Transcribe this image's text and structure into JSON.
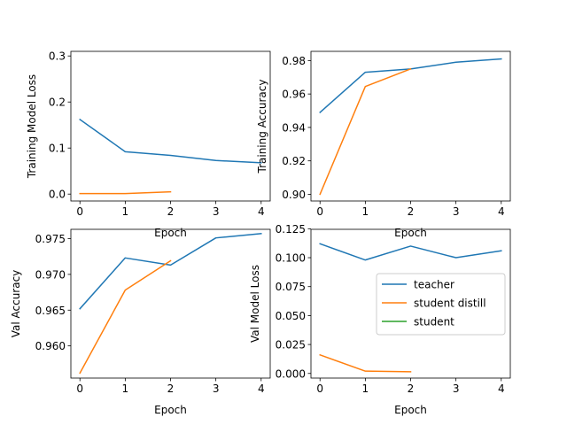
{
  "chart_data": [
    {
      "type": "line",
      "xlabel": "Epoch",
      "ylabel": "Training Model Loss",
      "xlim": [
        -0.2,
        4.2
      ],
      "ylim": [
        -0.015,
        0.31
      ],
      "xticks": [
        0,
        1,
        2,
        3,
        4
      ],
      "xtick_labels": [
        "0",
        "1",
        "2",
        "3",
        "4"
      ],
      "yticks": [
        0.0,
        0.1,
        0.2,
        0.3
      ],
      "ytick_labels": [
        "0.0",
        "0.1",
        "0.2",
        "0.3"
      ],
      "series": [
        {
          "name": "teacher",
          "x": [
            0,
            1,
            2,
            3,
            4
          ],
          "values": [
            0.162,
            0.092,
            0.084,
            0.073,
            0.068
          ]
        },
        {
          "name": "student distill",
          "x": [
            0,
            1,
            2
          ],
          "values": [
            0.001,
            0.001,
            0.005
          ]
        }
      ]
    },
    {
      "type": "line",
      "xlabel": "Epoch",
      "ylabel": "Training Accuracy",
      "xlim": [
        -0.2,
        4.2
      ],
      "ylim": [
        0.896,
        0.9855
      ],
      "xticks": [
        0,
        1,
        2,
        3,
        4
      ],
      "xtick_labels": [
        "0",
        "1",
        "2",
        "3",
        "4"
      ],
      "yticks": [
        0.9,
        0.92,
        0.94,
        0.96,
        0.98
      ],
      "ytick_labels": [
        "0.90",
        "0.92",
        "0.94",
        "0.96",
        "0.98"
      ],
      "series": [
        {
          "name": "teacher",
          "x": [
            0,
            1,
            2,
            3,
            4
          ],
          "values": [
            0.949,
            0.973,
            0.975,
            0.979,
            0.981
          ]
        },
        {
          "name": "student distill",
          "x": [
            0,
            1,
            2
          ],
          "values": [
            0.9,
            0.9645,
            0.975
          ]
        }
      ]
    },
    {
      "type": "line",
      "xlabel": "Epoch",
      "ylabel": "Val Accuracy",
      "xlim": [
        -0.2,
        4.2
      ],
      "ylim": [
        0.9555,
        0.9763
      ],
      "xticks": [
        0,
        1,
        2,
        3,
        4
      ],
      "xtick_labels": [
        "0",
        "1",
        "2",
        "3",
        "4"
      ],
      "yticks": [
        0.96,
        0.965,
        0.97,
        0.975
      ],
      "ytick_labels": [
        "0.960",
        "0.965",
        "0.970",
        "0.975"
      ],
      "series": [
        {
          "name": "teacher",
          "x": [
            0,
            1,
            2,
            3,
            4
          ],
          "values": [
            0.9652,
            0.9723,
            0.9713,
            0.9751,
            0.9757
          ]
        },
        {
          "name": "student distill",
          "x": [
            0,
            1,
            2
          ],
          "values": [
            0.9562,
            0.9678,
            0.9719
          ]
        }
      ]
    },
    {
      "type": "line",
      "xlabel": "Epoch",
      "ylabel": "Val Model Loss",
      "xlim": [
        -0.2,
        4.2
      ],
      "ylim": [
        -0.004,
        0.1245
      ],
      "xticks": [
        0,
        1,
        2,
        3,
        4
      ],
      "xtick_labels": [
        "0",
        "1",
        "2",
        "3",
        "4"
      ],
      "yticks": [
        0.0,
        0.025,
        0.05,
        0.075,
        0.1,
        0.125
      ],
      "ytick_labels": [
        "0.000",
        "0.025",
        "0.050",
        "0.075",
        "0.100",
        "0.125"
      ],
      "legend": {
        "placement": "center-right",
        "entries": [
          "teacher",
          "student distill",
          "student"
        ]
      },
      "series": [
        {
          "name": "teacher",
          "x": [
            0,
            1,
            2,
            3,
            4
          ],
          "values": [
            0.112,
            0.098,
            0.11,
            0.1,
            0.106
          ]
        },
        {
          "name": "student distill",
          "x": [
            0,
            1,
            2
          ],
          "values": [
            0.016,
            0.002,
            0.0015
          ]
        },
        {
          "name": "student",
          "x": [],
          "values": []
        }
      ]
    }
  ],
  "series_colors": {
    "teacher": "#1f77b4",
    "student distill": "#ff7f0e",
    "student": "#2ca02c"
  }
}
